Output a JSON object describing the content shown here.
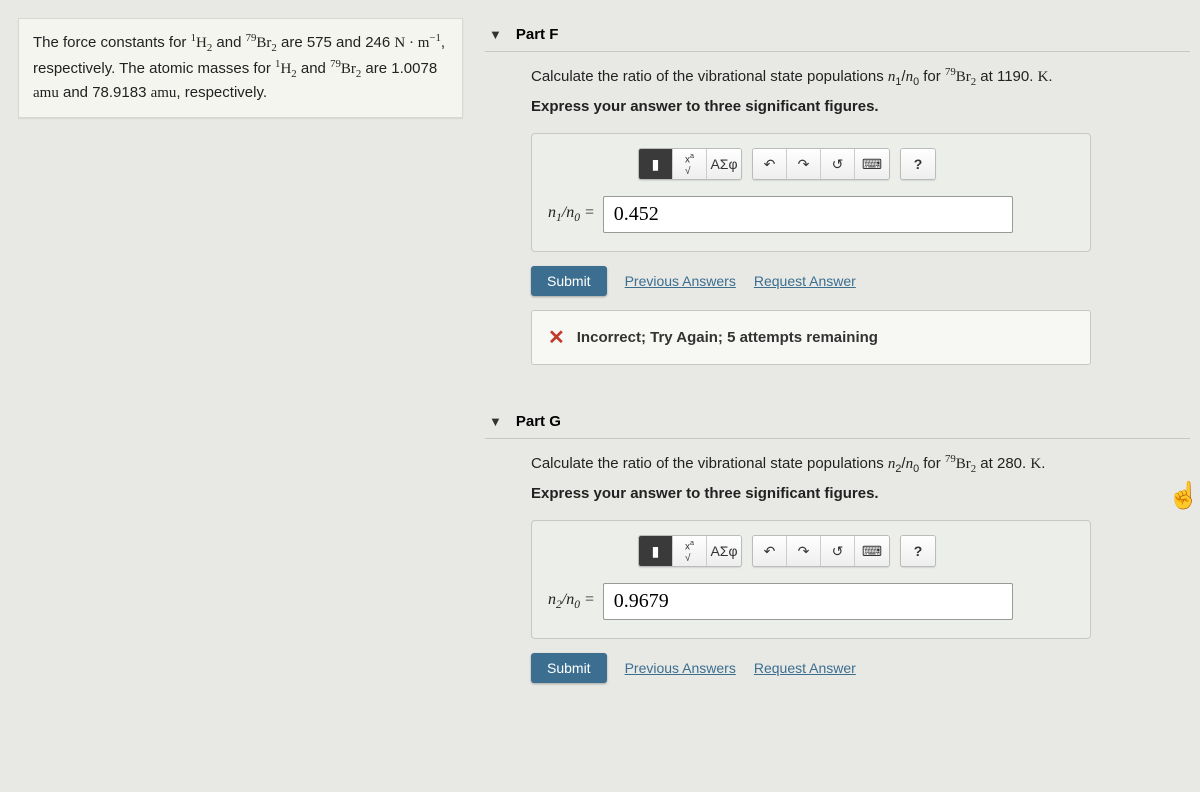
{
  "info_card": {
    "html": "The force constants for <span class='serif'><sup>1</sup>H<sub>2</sub></span> and <span class='serif'><sup>79</sup>Br<sub>2</sub></span> are 575 and 246 <span class='serif rm'>N · m<sup>−1</sup></span>, respectively. The atomic masses for <span class='serif'><sup>1</sup>H<sub>2</sub></span> and <span class='serif'><sup>79</sup>Br<sub>2</sub></span> are 1.0078 <span class='serif rm'>amu</span> and 78.9183 <span class='serif rm'>amu</span>, respectively."
  },
  "partF": {
    "title": "Part F",
    "prompt_html": "Calculate the ratio of the vibrational state populations <span class='serif it'>n</span><sub>1</sub>/<span class='serif it'>n</span><sub>0</sub> for <span class='serif'><sup>79</sup>Br<sub>2</sub></span> at 1190. <span class='serif rm'>K</span>.",
    "sub": "Express your answer to three significant figures.",
    "answer_label_html": "<span class='serif it'>n</span><sub>1</sub>/<span class='serif it'>n</span><sub>0</sub> =",
    "answer_value": "0.452",
    "submit": "Submit",
    "prev": "Previous Answers",
    "req": "Request Answer",
    "feedback": "Incorrect; Try Again; 5 attempts remaining"
  },
  "partG": {
    "title": "Part G",
    "prompt_html": "Calculate the ratio of the vibrational state populations <span class='serif it'>n</span><sub>2</sub>/<span class='serif it'>n</span><sub>0</sub> for <span class='serif'><sup>79</sup>Br<sub>2</sub></span> at 280. <span class='serif rm'>K</span>.",
    "sub": "Express your answer to three significant figures.",
    "answer_label_html": "<span class='serif it'>n</span><sub>2</sub>/<span class='serif it'>n</span><sub>0</sub> =",
    "answer_value": "0.9679",
    "submit": "Submit",
    "prev": "Previous Answers",
    "req": "Request Answer"
  },
  "toolbar": {
    "template": "▮",
    "fraction": "√",
    "greek": "ΑΣφ",
    "undo": "↶",
    "redo": "↷",
    "reset": "↺",
    "keyboard": "⌨",
    "help": "?"
  }
}
